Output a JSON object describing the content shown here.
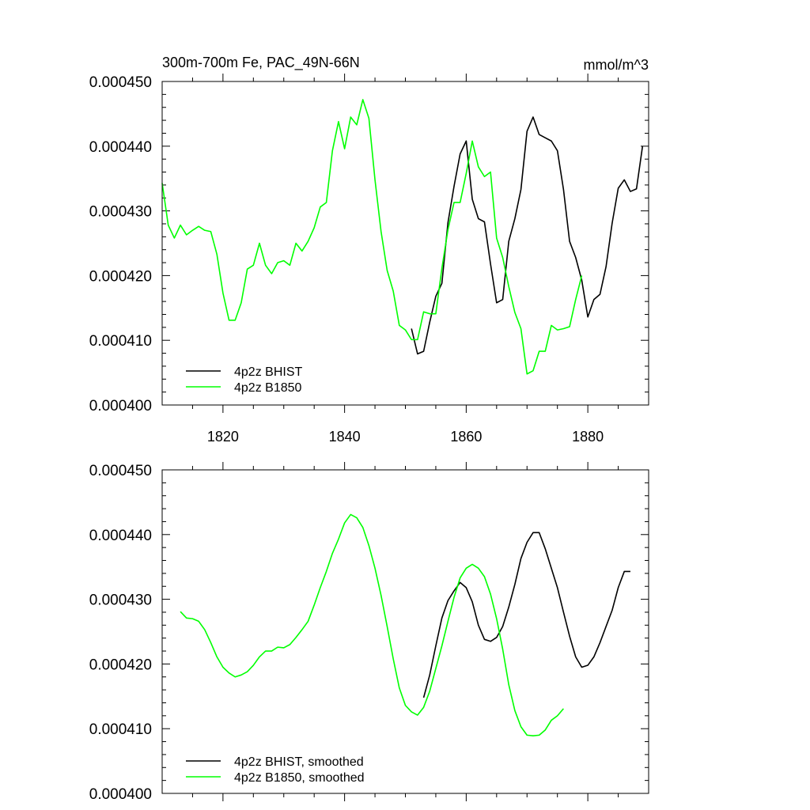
{
  "chart_data": [
    {
      "type": "line",
      "title": "300m-700m Fe, PAC_49N-66N",
      "units": "mmol/m^3",
      "xlim": [
        1810,
        1890
      ],
      "ylim": [
        0.0004,
        0.00045
      ],
      "xticks": [
        1820,
        1840,
        1860,
        1880
      ],
      "xtick_labels": [
        "1820",
        "1840",
        "1860",
        "1880"
      ],
      "yticks": [
        0.0004,
        0.00041,
        0.00042,
        0.00043,
        0.00044,
        0.00045
      ],
      "ytick_labels": [
        "0.000400",
        "0.000410",
        "0.000420",
        "0.000430",
        "0.000440",
        "0.000450"
      ],
      "legend_position": "bottom-left",
      "series": [
        {
          "name": "4p2z BHIST",
          "color": "#000000",
          "x": [
            1851,
            1852,
            1853,
            1854,
            1855,
            1856,
            1857,
            1858,
            1859,
            1860,
            1861,
            1862,
            1863,
            1864,
            1865,
            1866,
            1867,
            1868,
            1869,
            1870,
            1871,
            1872,
            1873,
            1874,
            1875,
            1876,
            1877,
            1878,
            1879,
            1880,
            1881,
            1882,
            1883,
            1884,
            1885,
            1886,
            1887,
            1888,
            1889
          ],
          "y": [
            0.0004118,
            0.0004079,
            0.0004083,
            0.0004128,
            0.0004168,
            0.0004188,
            0.0004282,
            0.0004338,
            0.0004388,
            0.0004408,
            0.0004318,
            0.0004288,
            0.0004283,
            0.0004218,
            0.0004158,
            0.0004163,
            0.0004253,
            0.0004288,
            0.0004333,
            0.0004423,
            0.0004445,
            0.0004418,
            0.0004413,
            0.0004408,
            0.0004393,
            0.0004333,
            0.0004253,
            0.0004228,
            0.0004193,
            0.0004136,
            0.0004163,
            0.0004171,
            0.0004214,
            0.0004281,
            0.0004335,
            0.0004348,
            0.000433,
            0.0004334,
            0.00044
          ]
        },
        {
          "name": "4p2z B1850",
          "color": "#00ff00",
          "x": [
            1810,
            1811,
            1812,
            1813,
            1814,
            1815,
            1816,
            1817,
            1818,
            1819,
            1820,
            1821,
            1822,
            1823,
            1824,
            1825,
            1826,
            1827,
            1828,
            1829,
            1830,
            1831,
            1832,
            1833,
            1834,
            1835,
            1836,
            1837,
            1838,
            1839,
            1840,
            1841,
            1842,
            1843,
            1844,
            1845,
            1846,
            1847,
            1848,
            1849,
            1850,
            1851,
            1852,
            1853,
            1854,
            1855,
            1856,
            1857,
            1858,
            1859,
            1860,
            1861,
            1862,
            1863,
            1864,
            1865,
            1866,
            1867,
            1868,
            1869,
            1870,
            1871,
            1872,
            1873,
            1874,
            1875,
            1876,
            1877,
            1878,
            1879
          ],
          "y": [
            0.0004343,
            0.0004278,
            0.0004258,
            0.0004278,
            0.0004263,
            0.000427,
            0.0004276,
            0.000427,
            0.0004268,
            0.0004233,
            0.0004173,
            0.0004131,
            0.0004131,
            0.0004158,
            0.000421,
            0.0004216,
            0.000425,
            0.0004216,
            0.0004203,
            0.000422,
            0.0004223,
            0.0004216,
            0.000425,
            0.0004238,
            0.0004253,
            0.0004274,
            0.0004306,
            0.0004313,
            0.0004393,
            0.0004438,
            0.0004396,
            0.0004445,
            0.0004433,
            0.0004472,
            0.0004443,
            0.0004348,
            0.0004268,
            0.0004208,
            0.0004176,
            0.0004123,
            0.0004116,
            0.0004101,
            0.0004101,
            0.0004144,
            0.0004141,
            0.0004141,
            0.0004211,
            0.0004271,
            0.0004313,
            0.0004313,
            0.0004358,
            0.0004408,
            0.0004368,
            0.0004353,
            0.000436,
            0.0004258,
            0.0004228,
            0.0004183,
            0.0004143,
            0.0004118,
            0.0004048,
            0.0004053,
            0.0004083,
            0.0004083,
            0.0004123,
            0.0004116,
            0.0004118,
            0.0004121,
            0.0004163,
            0.00042
          ]
        }
      ]
    },
    {
      "type": "line",
      "title": "",
      "units": "",
      "xlim": [
        1810,
        1890
      ],
      "ylim": [
        0.0004,
        0.00045
      ],
      "xticks": [
        1820,
        1840,
        1860,
        1880
      ],
      "xtick_labels": [],
      "yticks": [
        0.0004,
        0.00041,
        0.00042,
        0.00043,
        0.00044,
        0.00045
      ],
      "ytick_labels": [
        "0.000400",
        "0.000410",
        "0.000420",
        "0.000430",
        "0.000440",
        "0.000450"
      ],
      "legend_position": "bottom-left",
      "series": [
        {
          "name": "4p2z BHIST, smoothed",
          "color": "#000000",
          "x": [
            1853,
            1854,
            1855,
            1856,
            1857,
            1858,
            1859,
            1860,
            1861,
            1862,
            1863,
            1864,
            1865,
            1866,
            1867,
            1868,
            1869,
            1870,
            1871,
            1872,
            1873,
            1874,
            1875,
            1876,
            1877,
            1878,
            1879,
            1880,
            1881,
            1882,
            1883,
            1884,
            1885,
            1886,
            1887
          ],
          "y": [
            0.0004148,
            0.0004183,
            0.0004228,
            0.0004271,
            0.0004298,
            0.0004313,
            0.0004326,
            0.0004318,
            0.0004296,
            0.000426,
            0.0004238,
            0.0004235,
            0.0004241,
            0.0004258,
            0.0004288,
            0.0004323,
            0.0004363,
            0.0004388,
            0.0004403,
            0.0004403,
            0.0004378,
            0.0004348,
            0.0004318,
            0.000428,
            0.0004243,
            0.0004211,
            0.0004195,
            0.0004198,
            0.0004211,
            0.0004233,
            0.0004258,
            0.0004283,
            0.0004318,
            0.0004343,
            0.0004343
          ]
        },
        {
          "name": "4p2z B1850, smoothed",
          "color": "#00ff00",
          "x": [
            1813,
            1814,
            1815,
            1816,
            1817,
            1818,
            1819,
            1820,
            1821,
            1822,
            1823,
            1824,
            1825,
            1826,
            1827,
            1828,
            1829,
            1830,
            1831,
            1832,
            1833,
            1834,
            1835,
            1836,
            1837,
            1838,
            1839,
            1840,
            1841,
            1842,
            1843,
            1844,
            1845,
            1846,
            1847,
            1848,
            1849,
            1850,
            1851,
            1852,
            1853,
            1854,
            1855,
            1856,
            1857,
            1858,
            1859,
            1860,
            1861,
            1862,
            1863,
            1864,
            1865,
            1866,
            1867,
            1868,
            1869,
            1870,
            1871,
            1872,
            1873,
            1874,
            1875,
            1876
          ],
          "y": [
            0.0004281,
            0.0004271,
            0.000427,
            0.0004266,
            0.0004253,
            0.0004233,
            0.0004211,
            0.0004195,
            0.0004186,
            0.000418,
            0.0004183,
            0.0004188,
            0.0004198,
            0.0004211,
            0.000422,
            0.000422,
            0.0004226,
            0.0004225,
            0.000423,
            0.0004241,
            0.0004253,
            0.0004266,
            0.0004291,
            0.0004318,
            0.0004343,
            0.0004371,
            0.0004393,
            0.0004418,
            0.0004431,
            0.0004426,
            0.0004411,
            0.0004383,
            0.0004348,
            0.0004306,
            0.0004258,
            0.0004208,
            0.0004163,
            0.0004136,
            0.0004126,
            0.0004121,
            0.0004133,
            0.0004158,
            0.0004193,
            0.0004228,
            0.0004266,
            0.0004303,
            0.0004333,
            0.0004348,
            0.0004354,
            0.0004348,
            0.0004335,
            0.0004308,
            0.000427,
            0.0004223,
            0.0004168,
            0.0004128,
            0.0004103,
            0.000409,
            0.0004089,
            0.000409,
            0.0004098,
            0.0004113,
            0.000412,
            0.0004131
          ]
        }
      ]
    }
  ]
}
